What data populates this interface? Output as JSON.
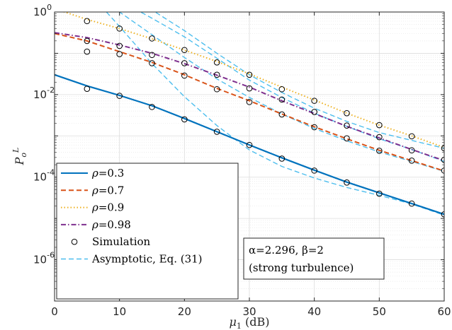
{
  "chart_data": {
    "type": "line",
    "xlabel": "μ₁ (dB)",
    "ylabel": "P_o^L",
    "xlim": [
      0,
      60
    ],
    "ylim_log10": [
      -7,
      0
    ],
    "y_scale": "log",
    "grid": true,
    "x_ticks": [
      0,
      10,
      20,
      30,
      40,
      50,
      60
    ],
    "x_tick_labels": [
      "0",
      "10",
      "20",
      "30",
      "40",
      "50",
      "60"
    ],
    "y_ticks_log10": [
      0,
      -2,
      -4,
      -6
    ],
    "y_tick_bases": [
      "10",
      "10",
      "10",
      "10"
    ],
    "y_tick_exponents": [
      "0",
      "-2",
      "-4",
      "-6"
    ],
    "legend_position": "bottom-left",
    "series": [
      {
        "name": "ρ=0.3",
        "name_symbol": "ρ",
        "name_value": "=0.3",
        "color": "#0072BD",
        "style": "solid",
        "x": [
          0,
          5,
          10,
          15,
          20,
          25,
          30,
          35,
          40,
          45,
          50,
          55,
          60
        ],
        "log10y": [
          -1.52,
          -1.79,
          -2.02,
          -2.27,
          -2.58,
          -2.9,
          -3.22,
          -3.53,
          -3.83,
          -4.12,
          -4.38,
          -4.64,
          -4.9
        ]
      },
      {
        "name": "ρ=0.7",
        "name_symbol": "ρ",
        "name_value": "=0.7",
        "color": "#D95319",
        "style": "dashed",
        "x": [
          0,
          5,
          10,
          15,
          20,
          25,
          30,
          35,
          40,
          45,
          50,
          55,
          60
        ],
        "log10y": [
          -0.52,
          -0.7,
          -0.96,
          -1.22,
          -1.52,
          -1.85,
          -2.15,
          -2.47,
          -2.78,
          -3.07,
          -3.35,
          -3.6,
          -3.85
        ]
      },
      {
        "name": "ρ=0.9",
        "name_symbol": "ρ",
        "name_value": "=0.9",
        "color": "#EDB120",
        "style": "dotted",
        "x": [
          0,
          5,
          10,
          15,
          20,
          25,
          30,
          35,
          40,
          45,
          50,
          55,
          60
        ],
        "log10y": [
          0.08,
          -0.18,
          -0.4,
          -0.65,
          -0.92,
          -1.2,
          -1.5,
          -1.82,
          -2.13,
          -2.45,
          -2.74,
          -3.0,
          -3.28
        ]
      },
      {
        "name": "ρ=0.98",
        "name_symbol": "ρ",
        "name_value": "=0.98",
        "color": "#7E2F8E",
        "style": "dashdot",
        "x": [
          0,
          5,
          10,
          15,
          20,
          25,
          30,
          35,
          40,
          45,
          50,
          55,
          60
        ],
        "log10y": [
          -0.5,
          -0.62,
          -0.8,
          -1.0,
          -1.25,
          -1.53,
          -1.82,
          -2.15,
          -2.46,
          -2.77,
          -3.05,
          -3.33,
          -3.6
        ]
      }
    ],
    "simulation": {
      "name": "Simulation",
      "marker": "circle",
      "x": [
        5,
        10,
        15,
        20,
        25,
        30,
        35,
        40,
        45,
        50,
        55,
        60
      ],
      "points_log10y": [
        [
          -1.86,
          -2.03,
          -2.3,
          -2.6,
          -2.9,
          -3.22,
          -3.55,
          -3.84,
          -4.13,
          -4.4,
          -4.64,
          -4.9
        ],
        [
          -0.96,
          -1.02,
          -1.24,
          -1.54,
          -1.87,
          -2.18,
          -2.48,
          -2.79,
          -3.06,
          -3.36,
          -3.6,
          -3.84
        ],
        [
          -0.22,
          -0.4,
          -0.64,
          -0.92,
          -1.22,
          -1.52,
          -1.87,
          -2.15,
          -2.45,
          -2.74,
          -3.01,
          -3.3
        ],
        [
          -0.7,
          -0.82,
          -1.04,
          -1.24,
          -1.52,
          -1.85,
          -2.12,
          -2.42,
          -2.75,
          -3.03,
          -3.35,
          -3.58
        ]
      ]
    },
    "asymptotic": {
      "name": "Asymptotic, Eq. (31)",
      "color": "#4DBEEE",
      "style": "dashed",
      "x": [
        8,
        10,
        15,
        20,
        25,
        30,
        35,
        40,
        45,
        50,
        55,
        60
      ],
      "curves_log10y": [
        [
          0.0,
          -0.35,
          -1.25,
          -2.05,
          -2.75,
          -3.34,
          -3.74,
          -4.02,
          -4.25,
          -4.44,
          -4.65,
          -4.92
        ],
        [
          0.25,
          0.0,
          -0.55,
          -1.1,
          -1.62,
          -2.07,
          -2.47,
          -2.82,
          -3.12,
          -3.39,
          -3.62,
          -3.86
        ],
        [
          0.55,
          0.4,
          0.05,
          -0.45,
          -1.0,
          -1.52,
          -1.95,
          -2.33,
          -2.65,
          -2.92,
          -3.11,
          -3.3
        ],
        [
          0.42,
          0.28,
          -0.15,
          -0.6,
          -1.12,
          -1.65,
          -2.07,
          -2.45,
          -2.77,
          -3.07,
          -3.33,
          -3.62
        ]
      ]
    },
    "annotation_lines": [
      "α=2.296, β=2",
      "(strong turbulence)"
    ]
  }
}
